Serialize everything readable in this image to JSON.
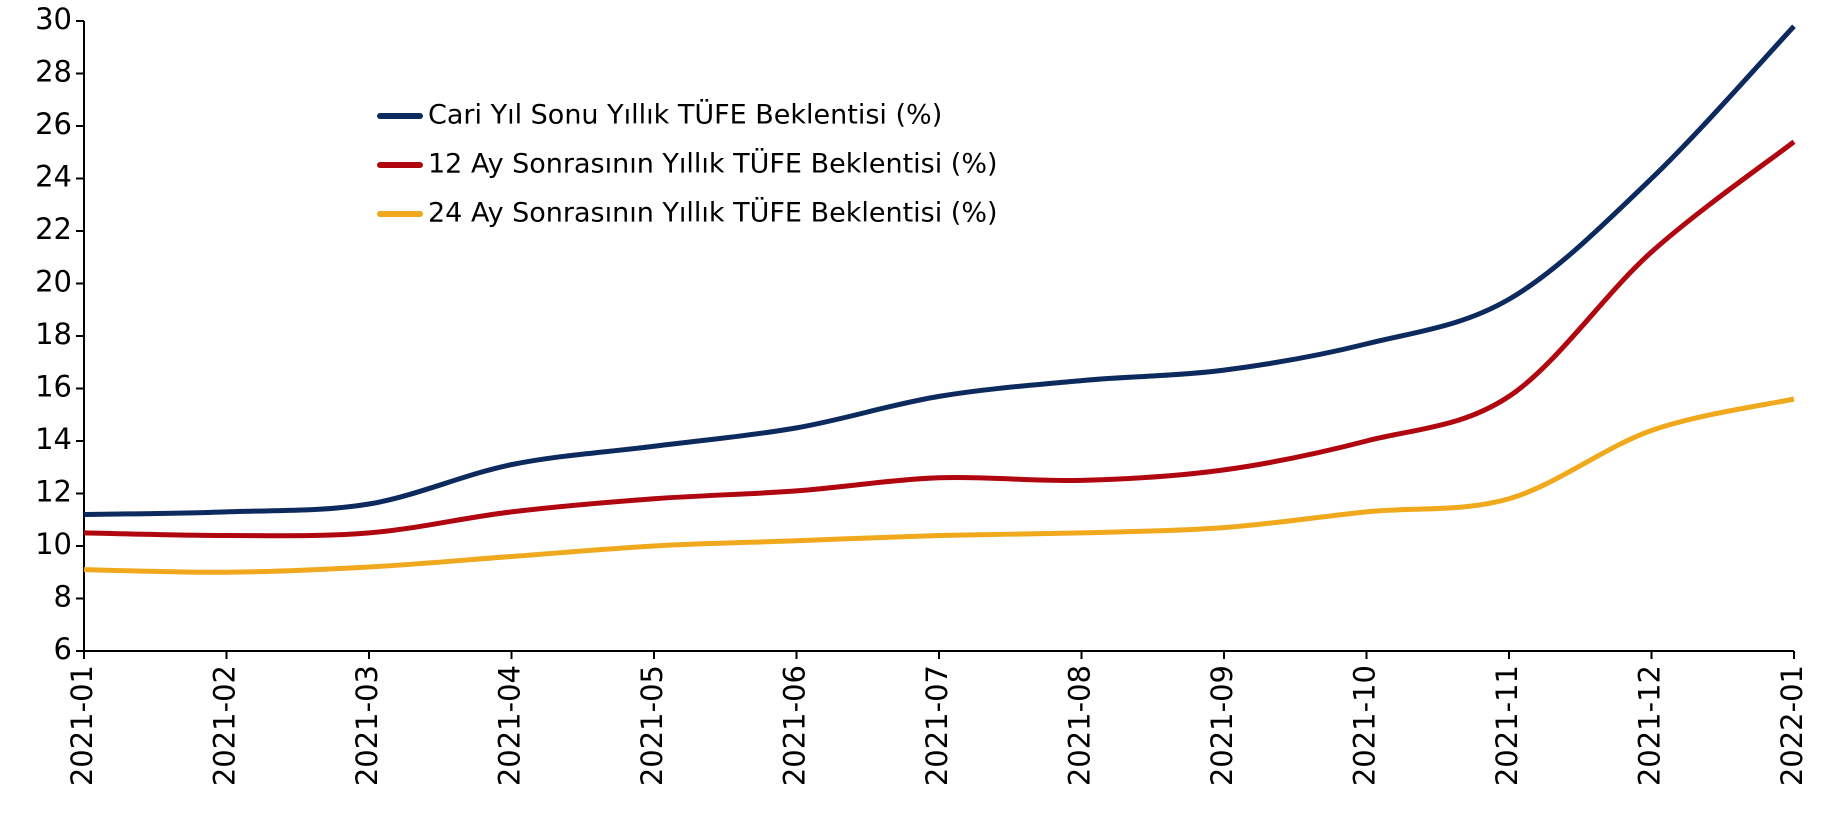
{
  "chart_data": {
    "type": "line",
    "categories": [
      "2021-01",
      "2021-02",
      "2021-03",
      "2021-04",
      "2021-05",
      "2021-06",
      "2021-07",
      "2021-08",
      "2021-09",
      "2021-10",
      "2021-11",
      "2021-12",
      "2022-01"
    ],
    "series": [
      {
        "name": "Cari Yıl Sonu Yıllık TÜFE Beklentisi (%)",
        "color": "#0d2a5e",
        "values": [
          11.2,
          11.3,
          11.6,
          13.1,
          13.8,
          14.5,
          15.7,
          16.3,
          16.7,
          17.7,
          19.4,
          24.0,
          29.8
        ]
      },
      {
        "name": "12 Ay Sonrasının Yıllık TÜFE Beklentisi (%)",
        "color": "#b0060f",
        "values": [
          10.5,
          10.4,
          10.5,
          11.3,
          11.8,
          12.1,
          12.6,
          12.5,
          12.9,
          14.0,
          15.7,
          21.2,
          25.4
        ]
      },
      {
        "name": "24 Ay Sonrasının Yıllık TÜFE Beklentisi (%)",
        "color": "#f0a81c",
        "values": [
          9.1,
          9.0,
          9.2,
          9.6,
          10.0,
          10.2,
          10.4,
          10.5,
          10.7,
          11.3,
          11.8,
          14.4,
          15.6
        ]
      }
    ],
    "ylim": [
      6,
      30
    ],
    "yticks": [
      6,
      8,
      10,
      12,
      14,
      16,
      18,
      20,
      22,
      24,
      26,
      28,
      30
    ],
    "grid": false,
    "legend": "top-left"
  }
}
